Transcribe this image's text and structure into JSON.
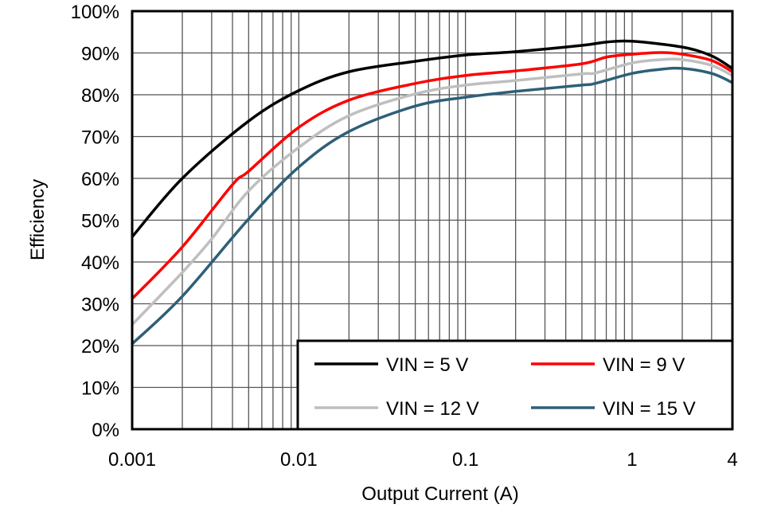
{
  "chart_data": {
    "type": "line",
    "title": "",
    "xlabel": "Output Current (A)",
    "ylabel": "Efficiency",
    "xscale": "log",
    "xlim": [
      0.001,
      4
    ],
    "ylim": [
      0,
      100
    ],
    "grid": true,
    "legend_position": "bottom-right",
    "x_ticks": [
      {
        "v": 0.001,
        "label": "0.001"
      },
      {
        "v": 0.01,
        "label": "0.01"
      },
      {
        "v": 0.1,
        "label": "0.1"
      },
      {
        "v": 1,
        "label": "1"
      },
      {
        "v": 4,
        "label": "4"
      }
    ],
    "y_ticks": [
      {
        "v": 0,
        "label": "0%"
      },
      {
        "v": 10,
        "label": "10%"
      },
      {
        "v": 20,
        "label": "20%"
      },
      {
        "v": 30,
        "label": "30%"
      },
      {
        "v": 40,
        "label": "40%"
      },
      {
        "v": 50,
        "label": "50%"
      },
      {
        "v": 60,
        "label": "60%"
      },
      {
        "v": 70,
        "label": "70%"
      },
      {
        "v": 80,
        "label": "80%"
      },
      {
        "v": 90,
        "label": "90%"
      },
      {
        "v": 100,
        "label": "100%"
      }
    ],
    "series": [
      {
        "name": "VIN = 5 V",
        "color": "#000000",
        "x": [
          0.001,
          0.002,
          0.005,
          0.01,
          0.02,
          0.05,
          0.1,
          0.2,
          0.5,
          0.7,
          1,
          2,
          3,
          4
        ],
        "y": [
          46,
          60,
          73.7,
          81,
          85.5,
          88,
          89.5,
          90.3,
          91.8,
          92.6,
          92.8,
          91.4,
          89.3,
          86.3
        ]
      },
      {
        "name": "VIN = 9 V",
        "color": "#ff0000",
        "x": [
          0.001,
          0.002,
          0.004,
          0.005,
          0.01,
          0.02,
          0.05,
          0.1,
          0.2,
          0.5,
          0.7,
          1,
          1.5,
          2,
          3,
          4
        ],
        "y": [
          31.2,
          43.6,
          58.5,
          61.7,
          72.2,
          78.7,
          82.7,
          84.6,
          85.7,
          87.4,
          89,
          89.7,
          90.1,
          89.7,
          88.2,
          85.5
        ]
      },
      {
        "name": "VIN = 12 V",
        "color": "#bfbfbf",
        "x": [
          0.001,
          0.002,
          0.003,
          0.005,
          0.01,
          0.02,
          0.05,
          0.1,
          0.2,
          0.5,
          0.6,
          1,
          1.5,
          2,
          3,
          4
        ],
        "y": [
          25,
          37.5,
          45.5,
          57,
          67.4,
          75,
          80.2,
          82.3,
          83.4,
          85,
          85.2,
          87.6,
          88.4,
          88.4,
          87,
          84.6
        ]
      },
      {
        "name": "VIN = 15 V",
        "color": "#2e5f78",
        "x": [
          0.001,
          0.002,
          0.005,
          0.01,
          0.02,
          0.05,
          0.1,
          0.2,
          0.5,
          0.6,
          1,
          1.5,
          2,
          3,
          4
        ],
        "y": [
          20.4,
          31.8,
          50.3,
          62.7,
          71.2,
          77.3,
          79.4,
          80.8,
          82.3,
          82.7,
          85.1,
          86.1,
          86.3,
          85.1,
          82.9
        ]
      }
    ]
  }
}
